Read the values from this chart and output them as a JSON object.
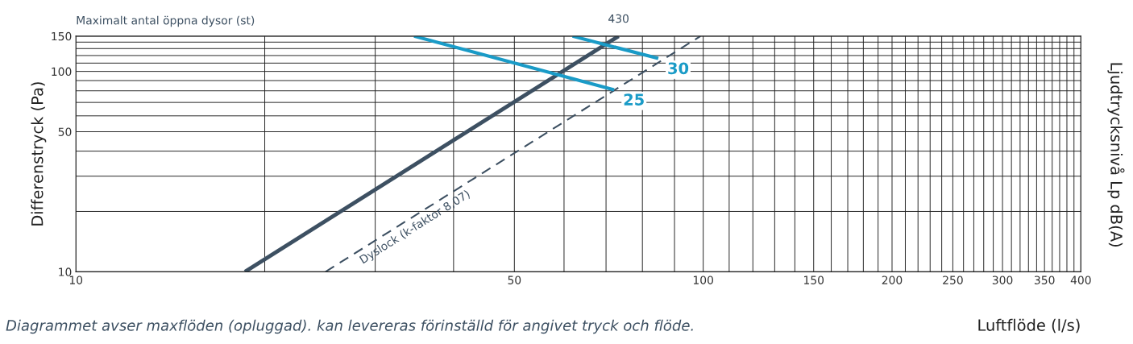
{
  "chart_data": {
    "type": "line",
    "xlabel": "Luftflöde (l/s)",
    "ylabel": "Differenstryck (Pa)",
    "y2label": "Ljudtrycksnivå Lp dB(A)",
    "log": "xy",
    "grid": true,
    "xlim": [
      10,
      400
    ],
    "ylim": [
      10,
      150
    ],
    "xticks": [
      10,
      {
        "value": 20,
        "label": null
      },
      {
        "value": 30,
        "label": null
      },
      {
        "value": 40,
        "label": null
      },
      50,
      {
        "value": 60,
        "label": null
      },
      {
        "value": 70,
        "label": null
      },
      {
        "value": 80,
        "label": null
      },
      {
        "value": 90,
        "label": null
      },
      100,
      {
        "value": 110,
        "label": null
      },
      {
        "value": 120,
        "label": null
      },
      {
        "value": 130,
        "label": null
      },
      {
        "value": 140,
        "label": null
      },
      150,
      {
        "value": 160,
        "label": null
      },
      {
        "value": 170,
        "label": null
      },
      {
        "value": 180,
        "label": null
      },
      {
        "value": 190,
        "label": null
      },
      200,
      {
        "value": 210,
        "label": null
      },
      {
        "value": 220,
        "label": null
      },
      {
        "value": 230,
        "label": null
      },
      {
        "value": 240,
        "label": null
      },
      250,
      {
        "value": 260,
        "label": null
      },
      {
        "value": 270,
        "label": null
      },
      {
        "value": 280,
        "label": null
      },
      {
        "value": 290,
        "label": null
      },
      300,
      {
        "value": 310,
        "label": null
      },
      {
        "value": 320,
        "label": null
      },
      {
        "value": 330,
        "label": null
      },
      {
        "value": 340,
        "label": null
      },
      350,
      {
        "value": 360,
        "label": null
      },
      {
        "value": 370,
        "label": null
      },
      {
        "value": 380,
        "label": null
      },
      {
        "value": 390,
        "label": null
      },
      400
    ],
    "yticks": [
      10,
      {
        "value": 20,
        "label": null
      },
      {
        "value": 30,
        "label": null
      },
      {
        "value": 40,
        "label": null
      },
      50,
      {
        "value": 60,
        "label": null
      },
      {
        "value": 70,
        "label": null
      },
      {
        "value": 80,
        "label": null
      },
      {
        "value": 90,
        "label": null
      },
      100,
      {
        "value": 110,
        "label": null
      },
      {
        "value": 120,
        "label": null
      },
      {
        "value": 130,
        "label": null
      },
      {
        "value": 140,
        "label": null
      },
      150
    ],
    "series": [
      {
        "color": "#3d5062",
        "x": [
          18.6,
          73.3
        ],
        "values": [
          10,
          150
        ],
        "line_style": "solid"
      },
      {
        "color": "#3d5062",
        "x": [
          25,
          99
        ],
        "values": [
          10,
          150
        ],
        "line_style": "dashed"
      },
      {
        "name": "25",
        "color": "#1a9bc7",
        "x": [
          34.6,
          72.1
        ],
        "values": [
          150,
          81
        ],
        "line_style": "solid"
      },
      {
        "name": "30",
        "color": "#1a9bc7",
        "x": [
          61.9,
          84.8
        ],
        "values": [
          150,
          116
        ],
        "line_style": "solid"
      }
    ],
    "annotations": [
      "Maximalt antal öppna dysor (st)",
      {
        "text": "430",
        "x": 73.3,
        "y": 150
      },
      "Dyslock (k-faktor 8,07)",
      "Diagrammet avser maxflöden (opluggad). kan levereras förinställd för angivet tryck och flöde."
    ]
  }
}
